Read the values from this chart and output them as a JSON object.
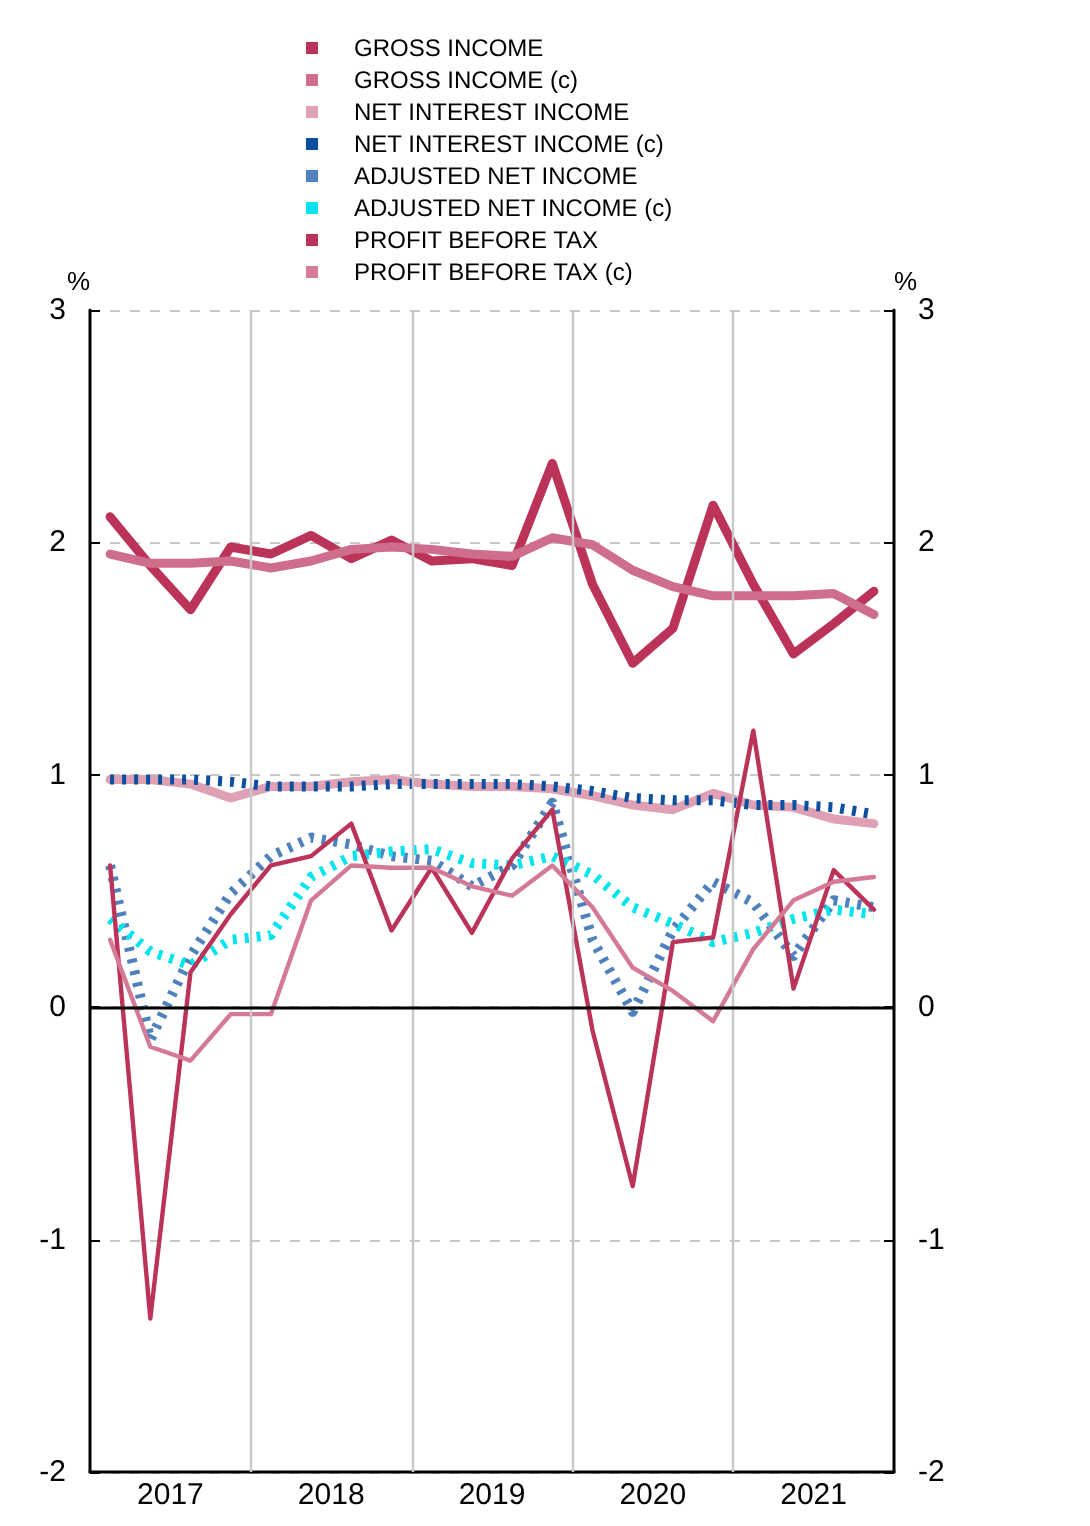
{
  "chart_data": {
    "type": "line",
    "x": [
      2017.125,
      2017.375,
      2017.625,
      2017.875,
      2018.125,
      2018.375,
      2018.625,
      2018.875,
      2019.125,
      2019.375,
      2019.625,
      2019.875,
      2020.125,
      2020.375,
      2020.625,
      2020.875,
      2021.125,
      2021.375,
      2021.625,
      2021.875
    ],
    "xlim": [
      2017,
      2022
    ],
    "xticks": [
      {
        "value": 2017.5,
        "label": "2017"
      },
      {
        "value": 2018.5,
        "label": "2018"
      },
      {
        "value": 2019.5,
        "label": "2019"
      },
      {
        "value": 2020.5,
        "label": "2020"
      },
      {
        "value": 2021.5,
        "label": "2021"
      }
    ],
    "ylabel": "%",
    "y2label": "%",
    "ylim": [
      -2,
      3
    ],
    "yticks": [
      -2,
      -1,
      0,
      1,
      2,
      3
    ],
    "y2lim": [
      -2,
      3
    ],
    "y2ticks": [
      -2,
      -1,
      0,
      1,
      2,
      3
    ],
    "grid": "y",
    "legend": "top",
    "ref_lines": [
      {
        "axis": "y",
        "value": 0,
        "color": "#000000"
      },
      {
        "axis": "x",
        "value": 2018,
        "color": "#c8c8c8"
      },
      {
        "axis": "x",
        "value": 2019,
        "color": "#c8c8c8"
      },
      {
        "axis": "x",
        "value": 2020,
        "color": "#c8c8c8"
      },
      {
        "axis": "x",
        "value": 2021,
        "color": "#c8c8c8"
      }
    ],
    "series": [
      {
        "name": "GROSS INCOME",
        "color": "#bb3359",
        "values": [
          2.11,
          1.9,
          1.71,
          1.98,
          1.95,
          2.03,
          1.93,
          2.01,
          1.92,
          1.93,
          1.9,
          2.34,
          1.82,
          1.48,
          1.63,
          2.16,
          1.82,
          1.52,
          1.65,
          1.79
        ]
      },
      {
        "name": "GROSS INCOME (c)",
        "color": "#cf6e8c",
        "values": [
          1.95,
          1.91,
          1.91,
          1.92,
          1.89,
          1.92,
          1.97,
          1.98,
          1.97,
          1.95,
          1.94,
          2.02,
          1.99,
          1.88,
          1.81,
          1.77,
          1.77,
          1.77,
          1.78,
          1.69
        ]
      },
      {
        "name": "NET INTEREST INCOME",
        "color": "#dfa0b4",
        "values": [
          0.98,
          0.98,
          0.96,
          0.9,
          0.95,
          0.95,
          0.97,
          0.98,
          0.96,
          0.95,
          0.95,
          0.94,
          0.91,
          0.87,
          0.85,
          0.92,
          0.87,
          0.86,
          0.81,
          0.79
        ]
      },
      {
        "name": "NET INTEREST INCOME (c)",
        "color": "#0a4fa0",
        "line_style": "dotted",
        "values": [
          0.98,
          0.98,
          0.98,
          0.97,
          0.95,
          0.95,
          0.95,
          0.96,
          0.96,
          0.96,
          0.96,
          0.95,
          0.93,
          0.9,
          0.89,
          0.89,
          0.87,
          0.87,
          0.86,
          0.83
        ]
      },
      {
        "name": "ADJUSTED NET INCOME",
        "color": "#4f81bd",
        "line_style": "dotted",
        "values": [
          0.61,
          -0.14,
          0.22,
          0.49,
          0.65,
          0.73,
          0.7,
          0.65,
          0.63,
          0.52,
          0.61,
          0.88,
          0.29,
          -0.02,
          0.33,
          0.54,
          0.45,
          0.22,
          0.46,
          0.43
        ]
      },
      {
        "name": "ADJUSTED NET INCOME (c)",
        "color": "#00e5ee",
        "line_style": "dotted",
        "values": [
          0.38,
          0.24,
          0.18,
          0.29,
          0.31,
          0.56,
          0.65,
          0.67,
          0.68,
          0.62,
          0.61,
          0.65,
          0.57,
          0.43,
          0.36,
          0.28,
          0.32,
          0.38,
          0.42,
          0.4
        ]
      },
      {
        "name": "PROFIT BEFORE TAX",
        "color": "#bb3359",
        "values": [
          0.61,
          -1.34,
          0.15,
          0.4,
          0.61,
          0.65,
          0.79,
          0.33,
          0.6,
          0.32,
          0.64,
          0.85,
          -0.1,
          -0.77,
          0.28,
          0.3,
          1.19,
          0.08,
          0.59,
          0.42
        ]
      },
      {
        "name": "PROFIT BEFORE TAX (c)",
        "color": "#d47a96",
        "values": [
          0.29,
          -0.17,
          -0.23,
          -0.03,
          -0.03,
          0.46,
          0.61,
          0.6,
          0.6,
          0.52,
          0.48,
          0.61,
          0.43,
          0.17,
          0.07,
          -0.06,
          0.25,
          0.46,
          0.54,
          0.56
        ]
      }
    ]
  }
}
